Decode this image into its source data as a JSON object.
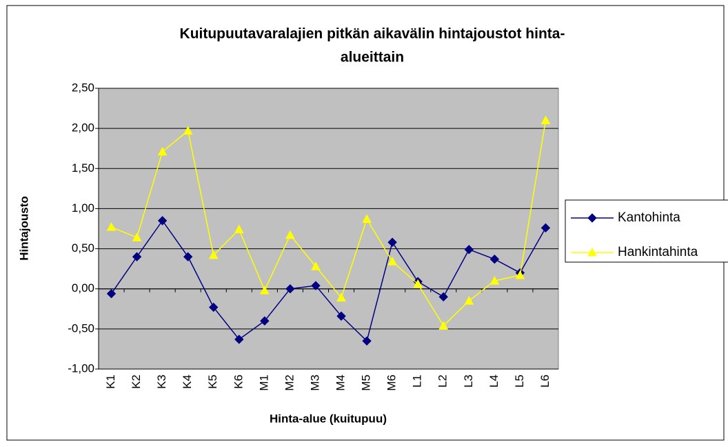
{
  "chart_data": {
    "type": "line",
    "title": [
      "Kuitupuutavaralajien pitkän aikavälin hintajoustot hinta-",
      "alueittain"
    ],
    "x_label": "Hinta-alue (kuitupuu)",
    "y_label": "Hintajousto",
    "categories": [
      "K1",
      "K2",
      "K3",
      "K4",
      "K5",
      "K6",
      "M1",
      "M2",
      "M3",
      "M4",
      "M5",
      "M6",
      "L1",
      "L2",
      "L3",
      "L4",
      "L5",
      "L6"
    ],
    "series": [
      {
        "name": "Kantohinta",
        "color": "#000080",
        "marker": "diamond",
        "values": [
          -0.06,
          0.4,
          0.85,
          0.4,
          -0.23,
          -0.63,
          -0.4,
          0.0,
          0.04,
          -0.34,
          -0.65,
          0.58,
          0.09,
          -0.1,
          0.49,
          0.37,
          0.2,
          0.76
        ]
      },
      {
        "name": "Hankintahinta",
        "color": "#ffff00",
        "marker": "triangle",
        "values": [
          0.77,
          0.64,
          1.71,
          1.97,
          0.42,
          0.74,
          -0.02,
          0.67,
          0.28,
          -0.11,
          0.87,
          0.34,
          0.06,
          -0.46,
          -0.15,
          0.1,
          0.17,
          2.1
        ]
      }
    ],
    "ylim": [
      -1,
      2.5
    ],
    "yticks": [
      {
        "value": -1,
        "label": "-1,00"
      },
      {
        "value": -0.5,
        "label": "-0,50"
      },
      {
        "value": 0,
        "label": "0,00"
      },
      {
        "value": 0.5,
        "label": "0,50"
      },
      {
        "value": 1,
        "label": "1,00"
      },
      {
        "value": 1.5,
        "label": "1,50"
      },
      {
        "value": 2,
        "label": "2,00"
      },
      {
        "value": 2.5,
        "label": "2,50"
      }
    ],
    "grid": true,
    "legend": "right",
    "plot_background": "#c0c0c0"
  }
}
